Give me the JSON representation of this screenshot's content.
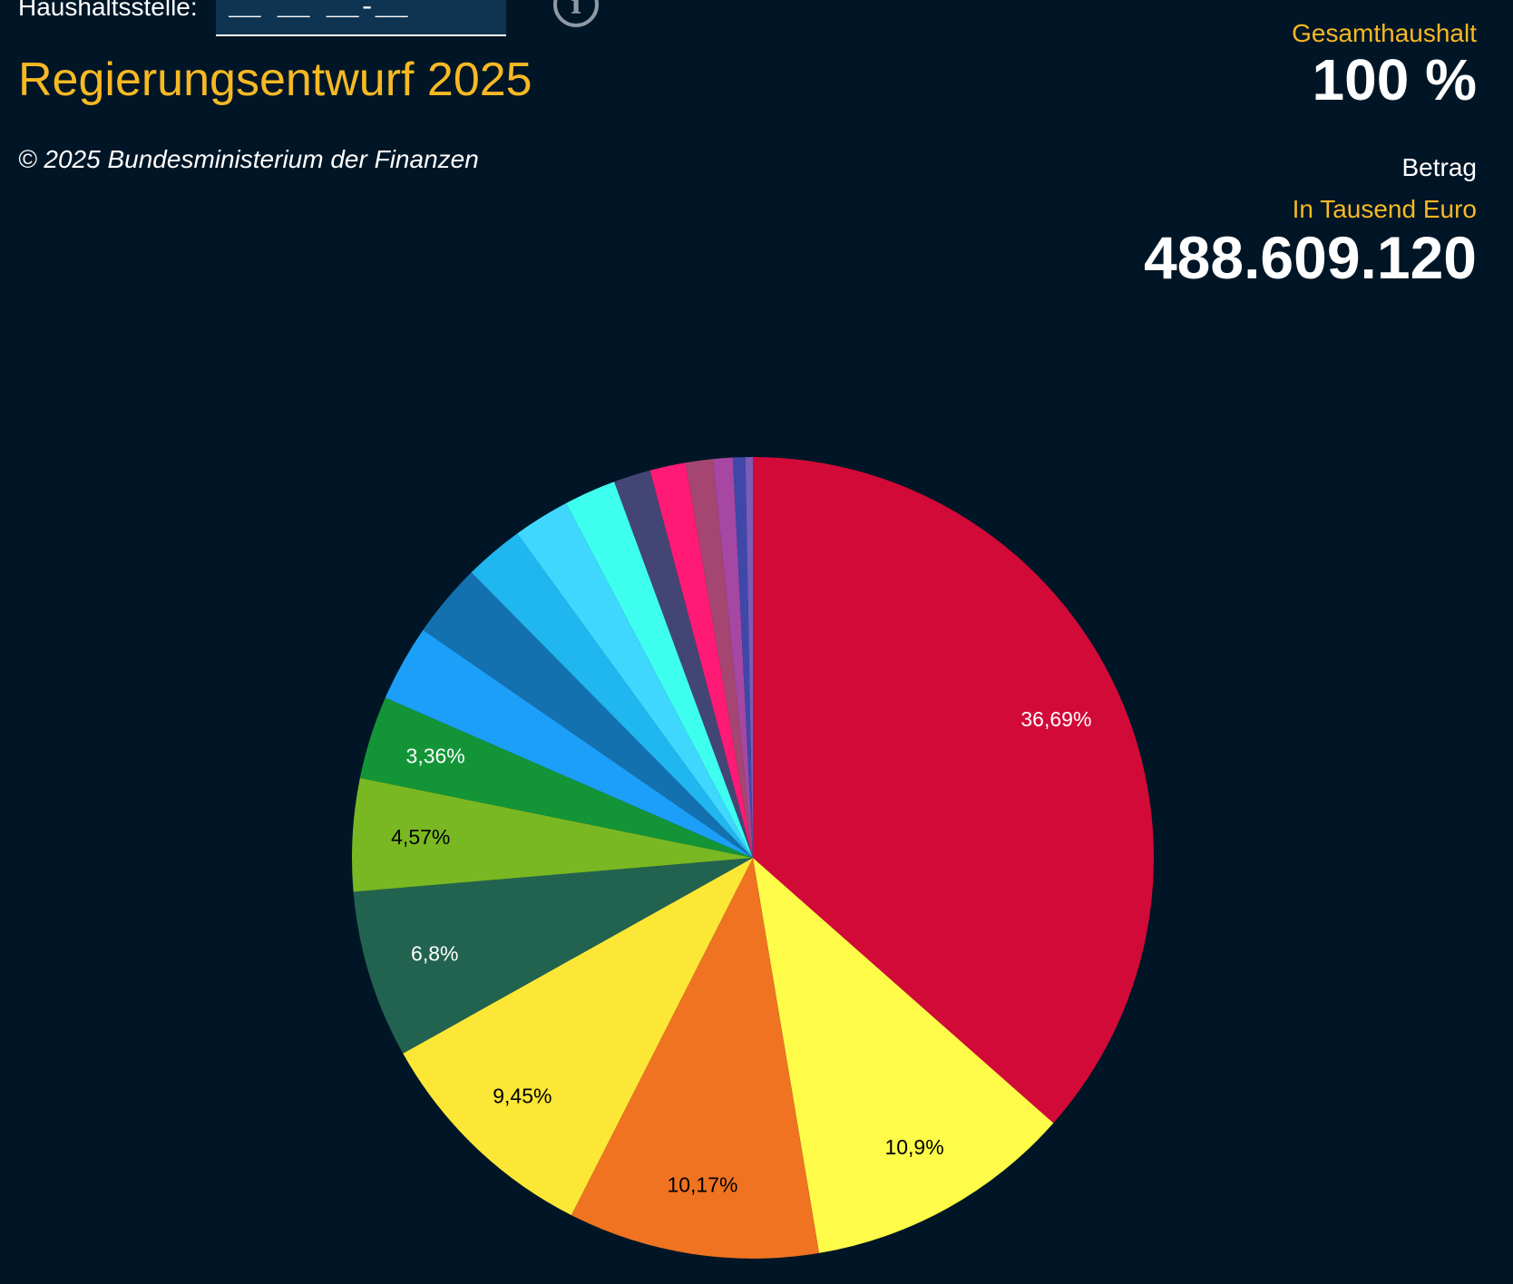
{
  "header": {
    "haushaltsstelle_label": "Haushaltsstelle:",
    "haushaltsstelle_placeholder": "__ __ __-__",
    "info_icon_text": "i",
    "title": "Regierungsentwurf 2025",
    "copyright": "© 2025 Bundesministerium der Finanzen"
  },
  "summary": {
    "gesamt_label": "Gesamthaushalt",
    "gesamt_value": "100 %",
    "betrag_label": "Betrag",
    "unit_label": "In Tausend Euro",
    "amount_value": "488.609.120"
  },
  "colors": {
    "background": "#001626",
    "accent": "#f6b924",
    "input_bg": "#0e3452"
  },
  "chart_data": {
    "type": "pie",
    "title": "",
    "start_angle_deg": 0,
    "direction": "clockwise",
    "slices": [
      {
        "value": 36.69,
        "label": "36,69%",
        "color": "#d20a38",
        "label_color": "#ffffff"
      },
      {
        "value": 10.9,
        "label": "10,9%",
        "color": "#fefc48",
        "label_color": "#000000"
      },
      {
        "value": 10.17,
        "label": "10,17%",
        "color": "#ef7321",
        "label_color": "#000000"
      },
      {
        "value": 9.45,
        "label": "9,45%",
        "color": "#fde736",
        "label_color": "#000000"
      },
      {
        "value": 6.8,
        "label": "6,8%",
        "color": "#226350",
        "label_color": "#ffffff"
      },
      {
        "value": 4.57,
        "label": "4,57%",
        "color": "#79b822",
        "label_color": "#000000"
      },
      {
        "value": 3.36,
        "label": "3,36%",
        "color": "#139537",
        "label_color": "#ffffff"
      },
      {
        "value": 3.1,
        "label": "",
        "color": "#1c9ff9"
      },
      {
        "value": 3.0,
        "label": "",
        "color": "#1471b0"
      },
      {
        "value": 2.4,
        "label": "",
        "color": "#20b6ef"
      },
      {
        "value": 2.3,
        "label": "",
        "color": "#3fd7fe"
      },
      {
        "value": 2.1,
        "label": "",
        "color": "#3effef"
      },
      {
        "value": 1.5,
        "label": "",
        "color": "#434674"
      },
      {
        "value": 1.45,
        "label": "",
        "color": "#ff1a76"
      },
      {
        "value": 1.1,
        "label": "",
        "color": "#a54670"
      },
      {
        "value": 0.8,
        "label": "",
        "color": "#a547a3"
      },
      {
        "value": 0.5,
        "label": "",
        "color": "#3f48a8"
      },
      {
        "value": 0.3,
        "label": "",
        "color": "#7b5cb7"
      }
    ]
  }
}
